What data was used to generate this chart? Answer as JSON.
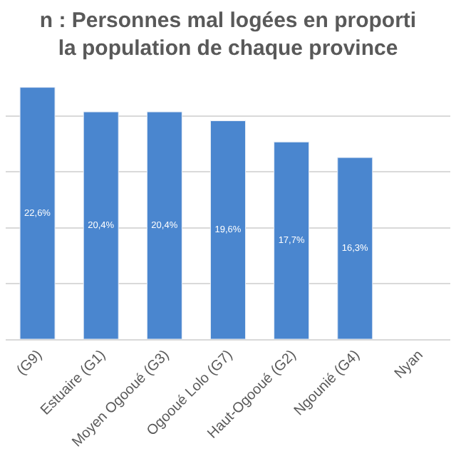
{
  "chart_data": {
    "type": "bar",
    "title": "n : Personnes mal logées en proporti\nla population de chaque province",
    "categories": [
      "(G9)",
      "Estuaire (G1)",
      "Moyen Ogooué (G3)",
      "Ogooué Lolo (G7)",
      "Haut-Ogooué (G2)",
      "Ngounié (G4)",
      "Nyan"
    ],
    "values": [
      22.6,
      20.4,
      20.4,
      19.6,
      17.7,
      16.3,
      null
    ],
    "value_labels": [
      "22,6%",
      "20,4%",
      "20,4%",
      "19,6%",
      "17,7%",
      "16,3%",
      null
    ],
    "color": "#4a86cf",
    "tick_labels": "x",
    "grid": "y",
    "legend": false
  }
}
